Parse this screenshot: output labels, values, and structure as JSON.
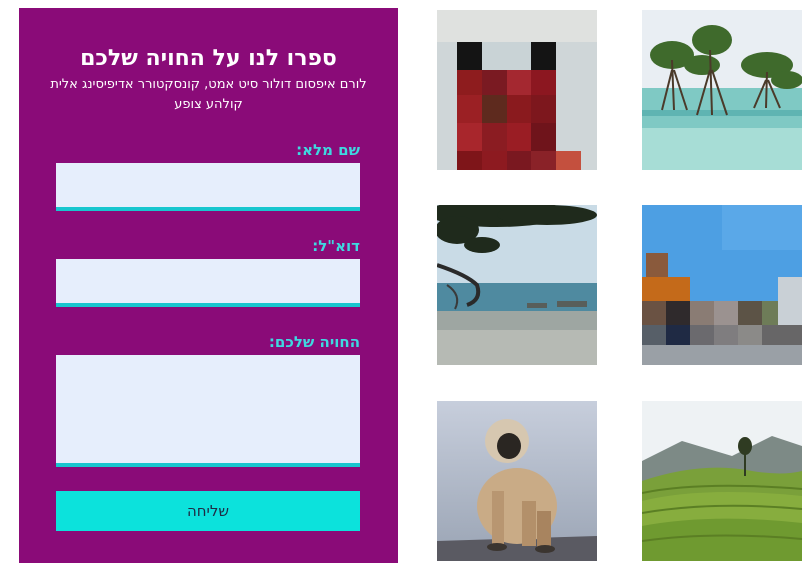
{
  "form": {
    "title": "ספרו לנו על החויה שלכם",
    "subtitle": "לורם איפסום דולור סיט אמט, קונסקטורר אדיפיסינג אלית קולהע צופע",
    "name_label": "שם מלא:",
    "name_value": "",
    "email_label": "דוא\"ל:",
    "email_value": "",
    "experience_label": "החויה שלכם:",
    "experience_value": "",
    "submit_label": "שליחה"
  },
  "colors": {
    "panel_background": "#8a0b78",
    "label_color": "#3fd8e0",
    "input_background": "#e6eefc",
    "input_underline": "#18c6cf",
    "submit_background": "#0ce2dc"
  },
  "gallery": {
    "images": [
      {
        "name": "mangrove-trees-photo"
      },
      {
        "name": "pixelated-red-photo"
      },
      {
        "name": "pixelated-sky-photo"
      },
      {
        "name": "beach-tree-photo"
      },
      {
        "name": "tea-plantation-photo"
      },
      {
        "name": "langur-monkey-photo"
      }
    ]
  }
}
